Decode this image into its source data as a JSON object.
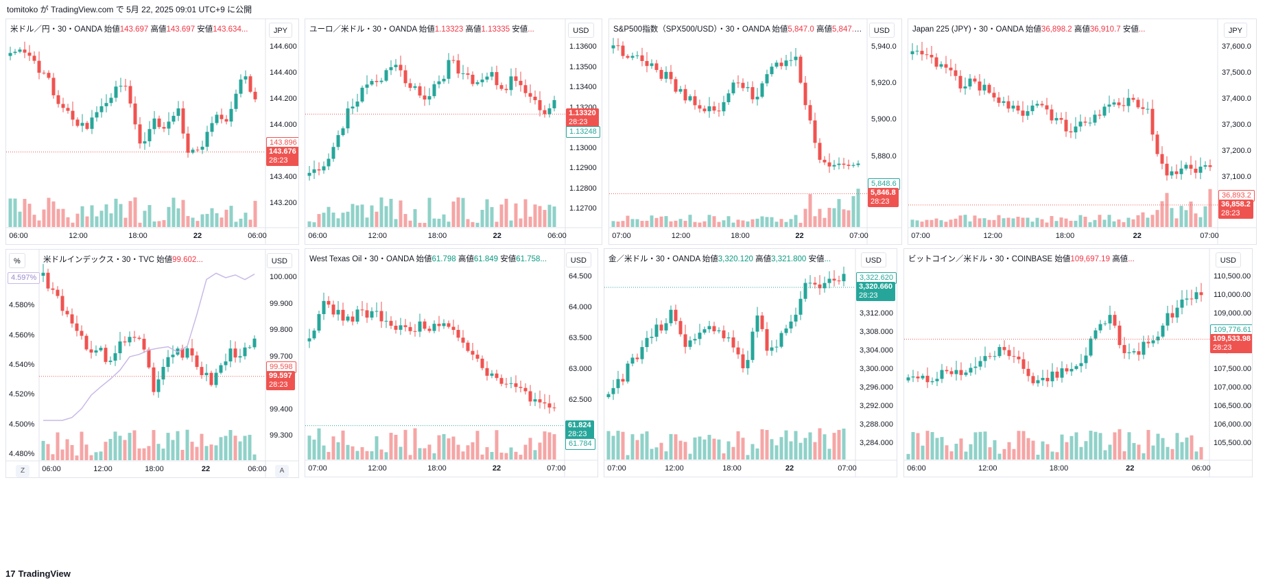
{
  "header": {
    "publish_text": "tomitoko が TradingView.com で 5月 22, 2025 09:01 UTC+9 に公開"
  },
  "footer": {
    "brand": "TradingView",
    "logo_text": "17"
  },
  "buttons": {
    "zoom": "Z",
    "auto": "A"
  },
  "colors": {
    "up": "#26a69a",
    "down": "#ef5350",
    "vol_up": "#8fd1c8",
    "vol_down": "#f5a5a5",
    "line": "#c9b8e6",
    "grid": "#e0e3eb"
  },
  "panes": [
    {
      "legend": "米ドル／円・30・OANDA",
      "ohlc": [
        {
          "k": "始値",
          "v": "143.697",
          "c": "red"
        },
        {
          "k": "高値",
          "v": "143.697",
          "c": "red"
        },
        {
          "k": "安値",
          "v": "143.634...",
          "c": "red"
        }
      ],
      "unit": "JPY",
      "price_ticks": [
        "144.600",
        "144.400",
        "144.200",
        "144.000",
        "143.800",
        "143.400",
        "143.200"
      ],
      "time_ticks": [
        "06:00",
        "12:00",
        "18:00",
        "22",
        "06:00"
      ],
      "labels": [
        {
          "price": "143.896",
          "style": "outline-red"
        },
        {
          "price": "143.676",
          "countdown": "28:23",
          "style": "solid-red"
        }
      ]
    },
    {
      "legend": "ユーロ／米ドル・30・OANDA",
      "ohlc": [
        {
          "k": "始値",
          "v": "1.13323",
          "c": "red"
        },
        {
          "k": "高値",
          "v": "1.13335",
          "c": "red"
        },
        {
          "k": "安値",
          "v": "...",
          "c": "red"
        }
      ],
      "unit": "USD",
      "price_ticks": [
        "1.13600",
        "1.13500",
        "1.13400",
        "1.13200",
        "1.13100",
        "1.13000",
        "1.12900",
        "1.12800",
        "1.12700"
      ],
      "time_ticks": [
        "06:00",
        "12:00",
        "18:00",
        "22",
        "06:00"
      ],
      "labels": [
        {
          "price": "1.13320",
          "countdown": "28:23",
          "style": "solid-red"
        },
        {
          "price": "1.13248",
          "style": "outline-green"
        }
      ]
    },
    {
      "legend": "S&P500指数（SPX500/USD）・30・OANDA",
      "ohlc": [
        {
          "k": "始値",
          "v": "5,847.0",
          "c": "red"
        },
        {
          "k": "高値",
          "v": "5,847.0...",
          "c": "red"
        }
      ],
      "unit": "USD",
      "price_ticks": [
        "5,940.0",
        "5,920.0",
        "5,900.0",
        "5,880.0",
        "5,860.0"
      ],
      "time_ticks": [
        "07:00",
        "12:00",
        "18:00",
        "22",
        "07:00"
      ],
      "labels": [
        {
          "price": "5,848.6",
          "style": "outline-green"
        },
        {
          "price": "5,846.8",
          "countdown": "28:23",
          "style": "solid-red"
        }
      ]
    },
    {
      "legend": "Japan 225 (JPY)・30・OANDA",
      "ohlc": [
        {
          "k": "始値",
          "v": "36,898.2",
          "c": "red"
        },
        {
          "k": "高値",
          "v": "36,910.7",
          "c": "red"
        },
        {
          "k": "安値",
          "v": "...",
          "c": "red"
        }
      ],
      "unit": "JPY",
      "price_ticks": [
        "37,600.0",
        "37,500.0",
        "37,400.0",
        "37,300.0",
        "37,200.0",
        "37,100.0",
        "37,000.0"
      ],
      "time_ticks": [
        "07:00",
        "12:00",
        "18:00",
        "22",
        "07:00"
      ],
      "labels": [
        {
          "price": "36,893.2",
          "style": "outline-red"
        },
        {
          "price": "36,858.2",
          "countdown": "28:23",
          "style": "solid-red"
        }
      ]
    },
    {
      "legend": "米ドルインデックス・30・TVC",
      "ohlc": [
        {
          "k": "始値",
          "v": "99.602...",
          "c": "red"
        }
      ],
      "unit": "USD",
      "left_unit": "%",
      "left_ticks": [
        "4.600%",
        "4.580%",
        "4.560%",
        "4.540%",
        "4.520%",
        "4.500%",
        "4.480%"
      ],
      "left_label": "4.597%",
      "price_ticks": [
        "100.000",
        "99.900",
        "99.800",
        "99.700",
        "99.500",
        "99.400",
        "99.300"
      ],
      "time_ticks": [
        "06:00",
        "12:00",
        "18:00",
        "22",
        "06:00"
      ],
      "labels": [
        {
          "price": "99.598",
          "style": "outline-red"
        },
        {
          "price": "99.597",
          "countdown": "28:23",
          "style": "solid-red"
        }
      ]
    },
    {
      "legend": "West Texas Oil・30・OANDA",
      "ohlc": [
        {
          "k": "始値",
          "v": "61.798",
          "c": "green"
        },
        {
          "k": "高値",
          "v": "61.849",
          "c": "green"
        },
        {
          "k": "安値",
          "v": "61.758...",
          "c": "green"
        }
      ],
      "unit": "USD",
      "price_ticks": [
        "64.500",
        "64.000",
        "63.500",
        "63.000",
        "62.500",
        "62.000"
      ],
      "time_ticks": [
        "07:00",
        "12:00",
        "18:00",
        "22",
        "07:00"
      ],
      "labels": [
        {
          "price": "61.824",
          "countdown": "28:23",
          "style": "solid-green"
        },
        {
          "price": "61.784",
          "style": "outline-green"
        }
      ]
    },
    {
      "legend": "金／米ドル・30・OANDA",
      "ohlc": [
        {
          "k": "始値",
          "v": "3,320.120",
          "c": "green"
        },
        {
          "k": "高値",
          "v": "3,321.800",
          "c": "green"
        },
        {
          "k": "安値",
          "v": "...",
          "c": "green"
        }
      ],
      "unit": "USD",
      "price_ticks": [
        "3,324.000",
        "3,316.000",
        "3,312.000",
        "3,308.000",
        "3,304.000",
        "3,300.000",
        "3,296.000",
        "3,292.000",
        "3,288.000",
        "3,284.000"
      ],
      "time_ticks": [
        "07:00",
        "12:00",
        "18:00",
        "22",
        "07:00"
      ],
      "labels": [
        {
          "price": "3,322.620",
          "style": "outline-green"
        },
        {
          "price": "3,320.660",
          "countdown": "28:23",
          "style": "solid-green"
        }
      ]
    },
    {
      "legend": "ビットコイン／米ドル・30・COINBASE",
      "ohlc": [
        {
          "k": "始値",
          "v": "109,697.19",
          "c": "red"
        },
        {
          "k": "高値",
          "v": "...",
          "c": "red"
        }
      ],
      "unit": "USD",
      "price_ticks": [
        "110,500.00",
        "110,000.00",
        "109,000.00",
        "108,500.00",
        "108,000.00",
        "107,500.00",
        "107,000.00",
        "106,500.00",
        "106,000.00",
        "105,500.00"
      ],
      "time_ticks": [
        "06:00",
        "12:00",
        "18:00",
        "22",
        "06:00"
      ],
      "labels": [
        {
          "price": "109,776.61",
          "style": "outline-green"
        },
        {
          "price": "109,533.98",
          "countdown": "28:23",
          "style": "solid-red"
        }
      ]
    }
  ]
}
